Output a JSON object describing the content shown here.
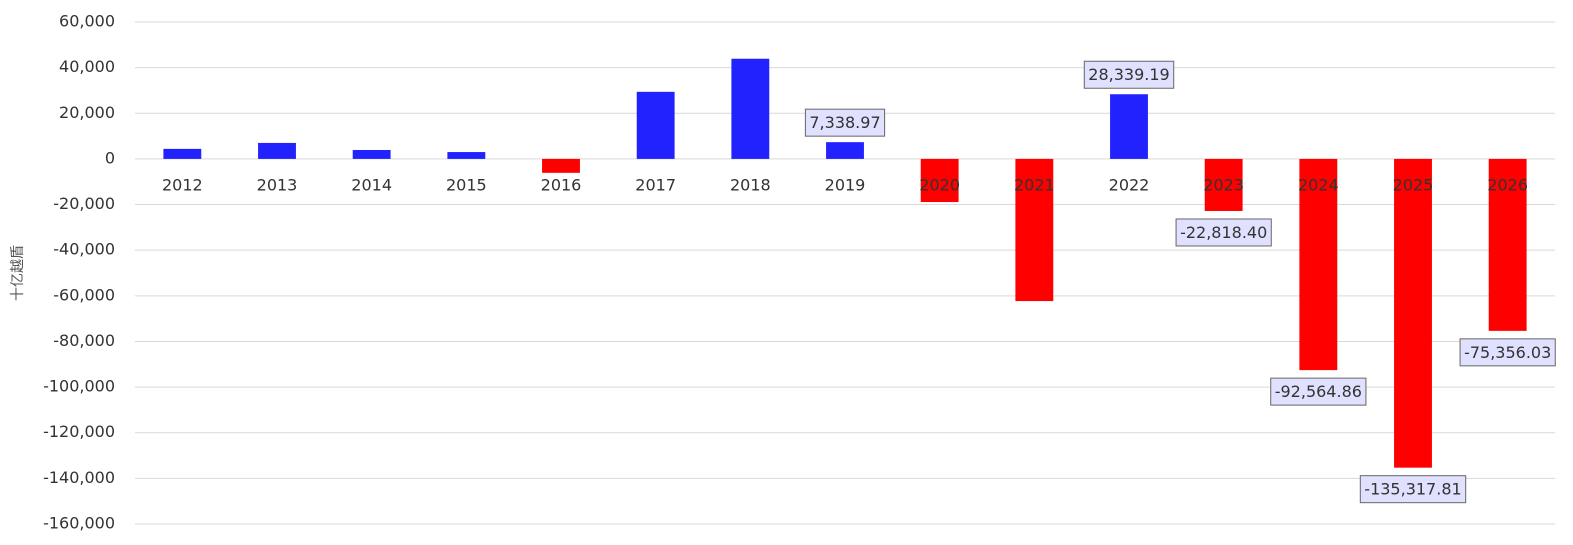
{
  "chart_data": {
    "type": "bar",
    "y_label": "十亿越盾",
    "categories": [
      "2012",
      "2013",
      "2014",
      "2015",
      "2016",
      "2017",
      "2018",
      "2019",
      "2020",
      "2021",
      "2022",
      "2023",
      "2024",
      "2025",
      "2026"
    ],
    "values": [
      4400,
      7000,
      3900,
      3000,
      -6100,
      29400,
      43900,
      7338.97,
      -18900,
      -62300,
      28339.19,
      -22818.4,
      -92564.86,
      -135317.81,
      -75356.03
    ],
    "value_labels": [
      null,
      null,
      null,
      null,
      null,
      null,
      null,
      "7,338.97",
      null,
      null,
      "28,339.19",
      "-22,818.40",
      "-92,564.86",
      "-135,317.81",
      "-75,356.03"
    ],
    "positive_color": "#2222ff",
    "negative_color": "#ff0000",
    "ylim": [
      -160000,
      60000
    ],
    "yticks": [
      {
        "value": 60000,
        "label": "60,000"
      },
      {
        "value": 40000,
        "label": "40,000"
      },
      {
        "value": 20000,
        "label": "20,000"
      },
      0,
      {
        "value": -20000,
        "label": "-20,000"
      },
      {
        "value": -40000,
        "label": "-40,000"
      },
      {
        "value": -60000,
        "label": "-60,000"
      },
      {
        "value": -80000,
        "label": "-80,000"
      },
      {
        "value": -100000,
        "label": "-100,000"
      },
      {
        "value": -120000,
        "label": "-120,000"
      },
      {
        "value": -140000,
        "label": "-140,000"
      },
      {
        "value": -160000,
        "label": "-160,000"
      }
    ],
    "grid": true
  }
}
